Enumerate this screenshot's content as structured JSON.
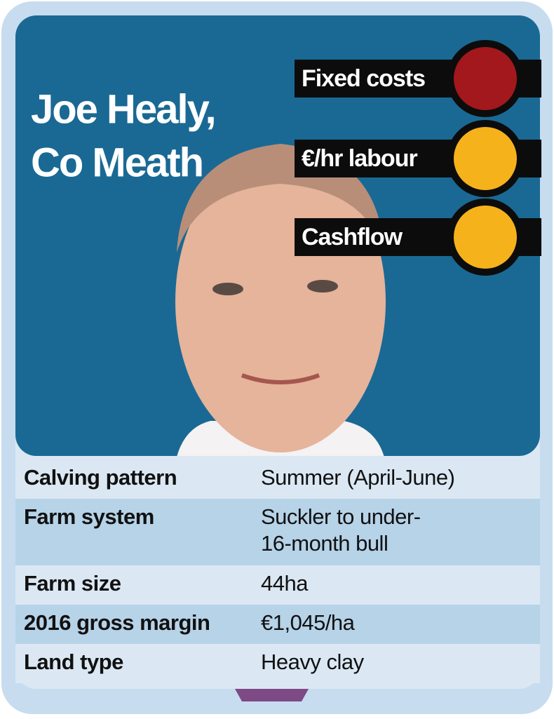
{
  "header": {
    "name_lines": [
      "Joe Healy,",
      "Co Meath"
    ]
  },
  "indicators": [
    {
      "label": "Fixed costs",
      "color": "#a3181c"
    },
    {
      "label": "€/hr labour",
      "color": "#f6b21b"
    },
    {
      "label": "Cashflow",
      "color": "#f6b21b"
    }
  ],
  "table": {
    "rows": [
      {
        "label": "Calving pattern",
        "value": [
          "Summer (April-June)"
        ]
      },
      {
        "label": "Farm system",
        "value": [
          "Suckler to under-",
          "16-month bull"
        ]
      },
      {
        "label": "Farm size",
        "value": [
          "44ha"
        ]
      },
      {
        "label": "2016 gross margin",
        "value": [
          "€1,045/ha"
        ]
      },
      {
        "label": "Land type",
        "value": [
          "Heavy clay"
        ]
      }
    ]
  }
}
